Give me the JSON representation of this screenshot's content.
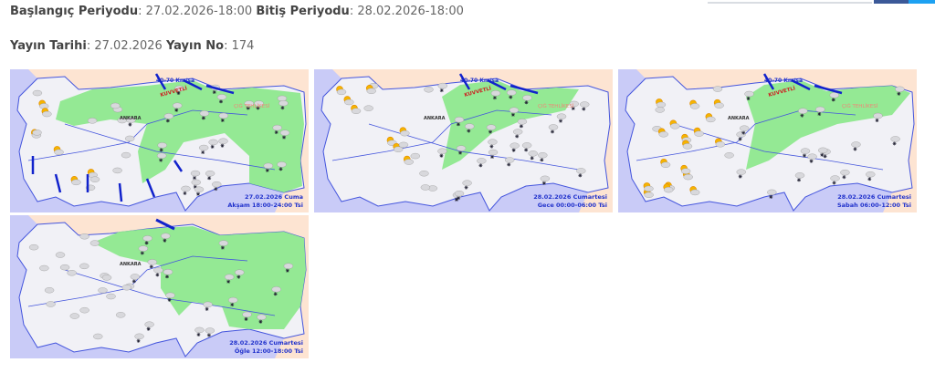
{
  "header": {
    "start_label": "Başlangıç Periyodu",
    "start_value": "27.02.2026-18:00",
    "end_label": "Bitiş Periyodu",
    "end_value": "28.02.2026-18:00",
    "pub_date_label": "Yayın Tarihi",
    "pub_date_value": "27.02.2026",
    "pub_no_label": "Yayın No",
    "pub_no_value": "174"
  },
  "colors": {
    "sea": "#c9cbf7",
    "land": "#f1f1f6",
    "neighbors": "#fde4d2",
    "warning_area": "#8ee88e",
    "caption": "#2233cc"
  },
  "maps": [
    {
      "date": "27.02.2026 Cuma",
      "period": "Akşam 18:00-24:00 Tsi",
      "labels": {
        "city": "ANKARA",
        "wind": "40-70 Km/sa",
        "strong": "KUVVETLİ",
        "avalanche": "ÇIĞ TEHLİKESİ"
      }
    },
    {
      "date": "28.02.2026 Cumartesi",
      "period": "Gece 00:00-06:00 Tsi",
      "labels": {
        "city": "ANKARA",
        "wind": "40-70 Km/sa",
        "strong": "KUVVETLİ",
        "avalanche": "ÇIĞ TEHLİKESİ"
      }
    },
    {
      "date": "28.02.2026 Cumartesi",
      "period": "Sabah 06:00-12:00 Tsi",
      "labels": {
        "city": "ANKARA",
        "wind": "40-70 Km/sa",
        "strong": "KUVVETLİ",
        "avalanche": "ÇIĞ TEHLİKESİ"
      }
    },
    {
      "date": "28.02.2026 Cumartesi",
      "period": "Öğle 12:00-18:00 Tsi",
      "labels": {
        "city": "ANKARA"
      }
    }
  ]
}
